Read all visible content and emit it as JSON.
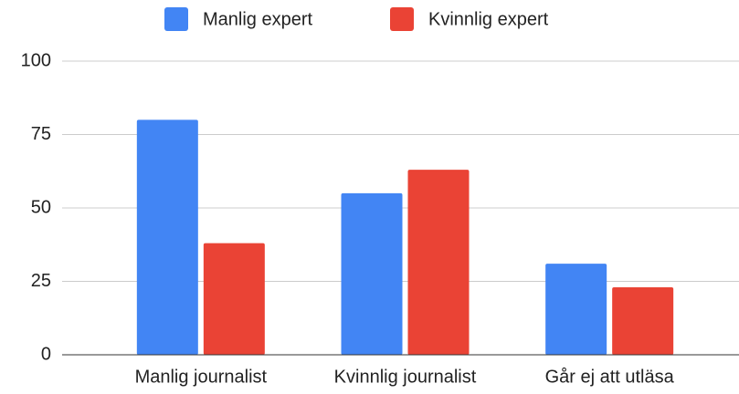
{
  "chart_data": {
    "type": "bar",
    "categories": [
      "Manlig journalist",
      "Kvinnlig journalist",
      "Går ej att utläsa"
    ],
    "series": [
      {
        "name": "Manlig expert",
        "color": "#4285f4",
        "values": [
          80,
          55,
          31
        ]
      },
      {
        "name": "Kvinnlig expert",
        "color": "#ea4335",
        "values": [
          38,
          63,
          23
        ]
      }
    ],
    "ylim": [
      0,
      100
    ],
    "yticks": [
      0,
      25,
      50,
      75,
      100
    ],
    "grid": true,
    "legend": "top"
  }
}
